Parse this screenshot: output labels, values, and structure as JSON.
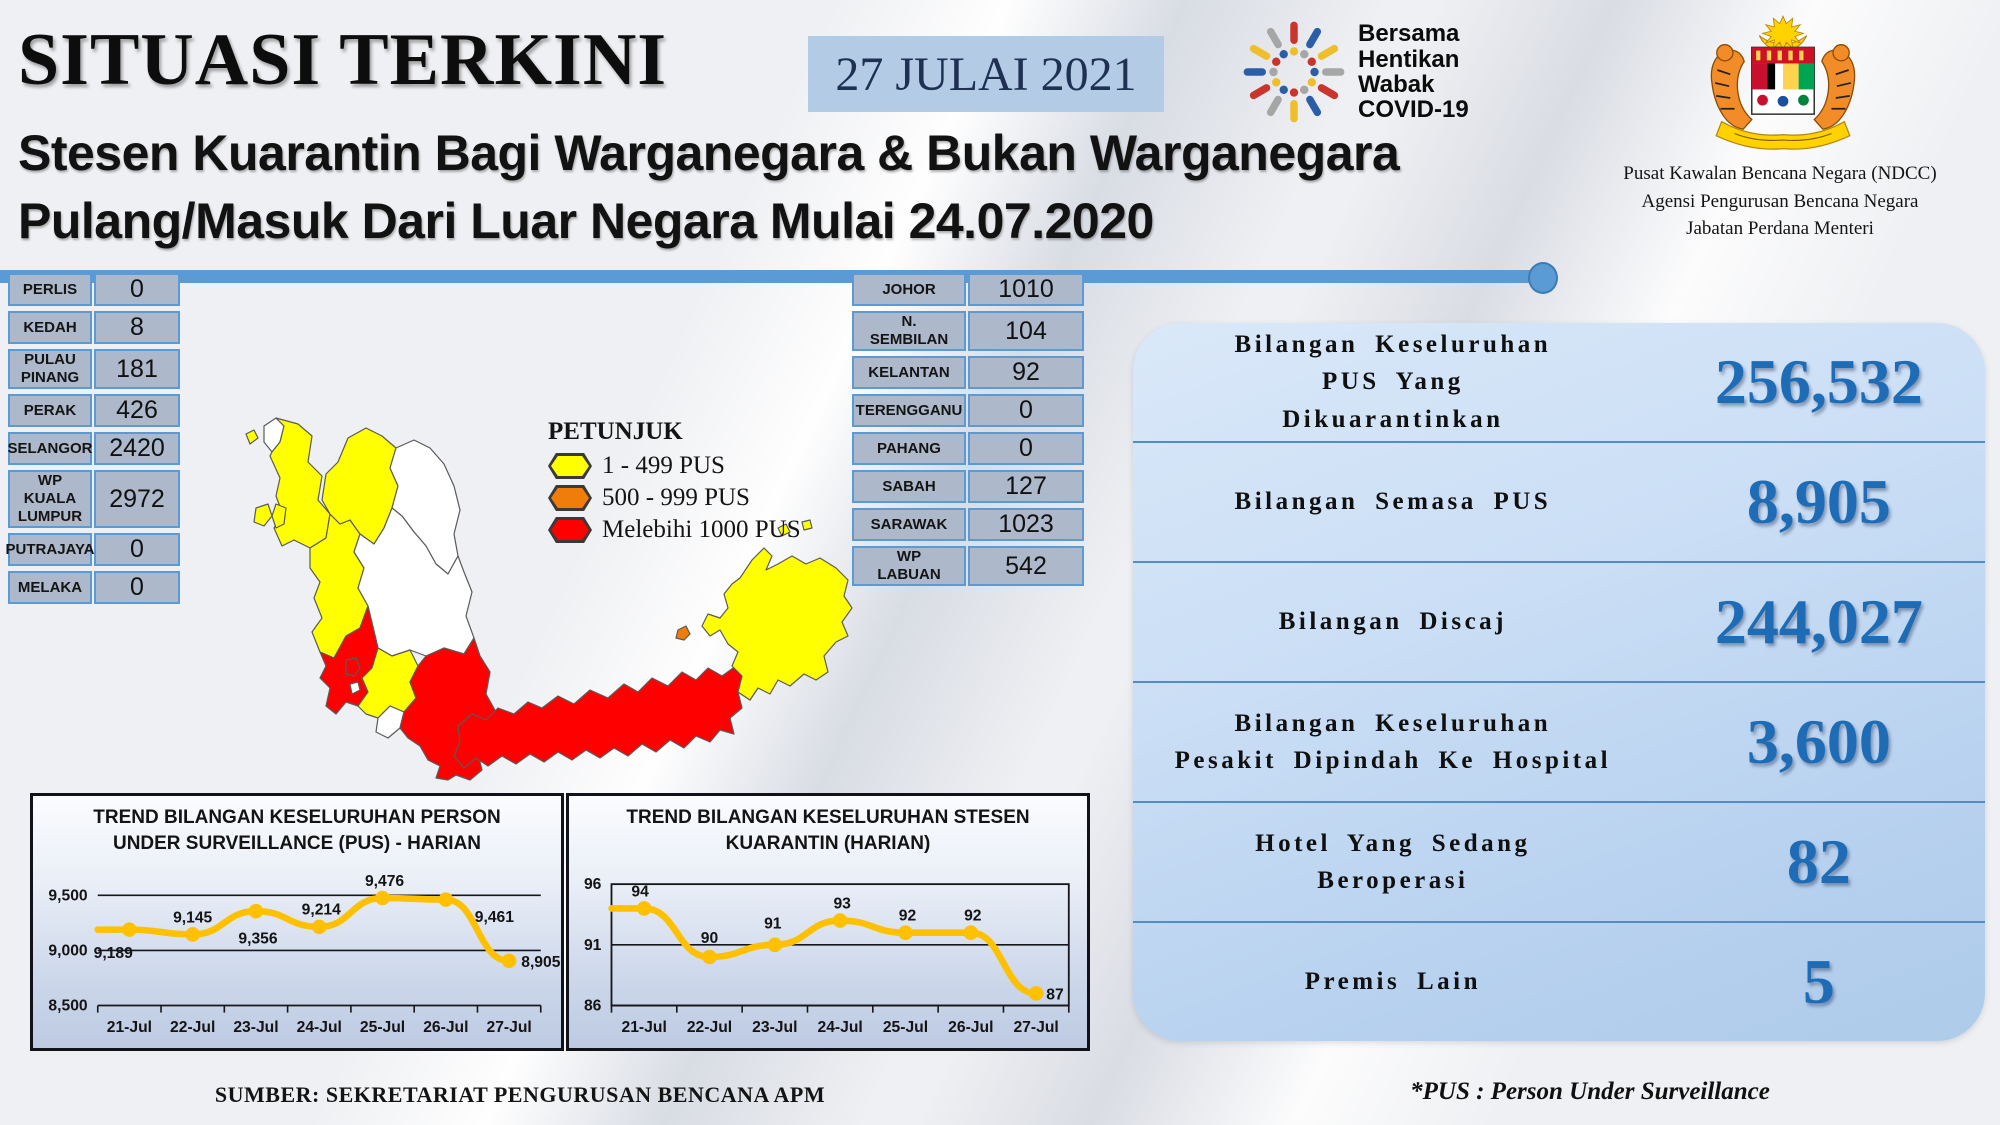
{
  "header": {
    "title": "SITUASI TERKINI",
    "date": "27 JULAI 2021",
    "subtitle_line1": "Stesen Kuarantin Bagi Warganegara & Bukan Warganegara",
    "subtitle_line2": "Pulang/Masuk Dari Luar Negara Mulai 24.07.2020",
    "campaign_logo_lines": [
      "Bersama",
      "Hentikan",
      "Wabak",
      "COVID-19"
    ],
    "agency_lines": [
      "Pusat Kawalan Bencana Negara (NDCC)",
      "Agensi Pengurusan Bencana Negara",
      "Jabatan Perdana Menteri"
    ]
  },
  "left_table": {
    "rows": [
      {
        "label": "PERLIS",
        "value": "0"
      },
      {
        "label": "KEDAH",
        "value": "8"
      },
      {
        "label": "PULAU\nPINANG",
        "value": "181"
      },
      {
        "label": "PERAK",
        "value": "426"
      },
      {
        "label": "SELANGOR",
        "value": "2420"
      },
      {
        "label": "WP KUALA\nLUMPUR",
        "value": "2972"
      },
      {
        "label": "PUTRAJAYA",
        "value": "0"
      },
      {
        "label": "MELAKA",
        "value": "0"
      }
    ]
  },
  "right_table": {
    "rows": [
      {
        "label": "JOHOR",
        "value": "1010"
      },
      {
        "label": "N.\nSEMBILAN",
        "value": "104"
      },
      {
        "label": "KELANTAN",
        "value": "92"
      },
      {
        "label": "TERENGGANU",
        "value": "0"
      },
      {
        "label": "PAHANG",
        "value": "0"
      },
      {
        "label": "SABAH",
        "value": "127"
      },
      {
        "label": "SARAWAK",
        "value": "1023"
      },
      {
        "label": "WP\nLABUAN",
        "value": "542"
      }
    ]
  },
  "legend": {
    "title": "PETUNJUK",
    "items": [
      {
        "label": "1 - 499 PUS",
        "color": "#FFFF00"
      },
      {
        "label": "500 - 999 PUS",
        "color": "#F07D09"
      },
      {
        "label": "Melebihi 1000 PUS",
        "color": "#FF0000"
      }
    ]
  },
  "map": {
    "state_colors": {
      "perlis": "#FFFFFF",
      "kedah": "#FFFF00",
      "langkawi": "#FFFF00",
      "pulau_pinang": "#FFFF00",
      "penang_mainland": "#FFFF00",
      "perak": "#FFFF00",
      "kelantan": "#FFFF00",
      "terengganu": "#FFFFFF",
      "pahang": "#FFFFFF",
      "selangor": "#FF0000",
      "kuala_lumpur": "#FF0000",
      "putrajaya": "#FFFFFF",
      "n_sembilan": "#FFFF00",
      "melaka": "#FFFFFF",
      "johor": "#FF0000",
      "sabah": "#FFFF00",
      "labuan": "#F07D09",
      "sarawak": "#FF0000"
    }
  },
  "stats": {
    "rows": [
      {
        "label": "Bilangan Keseluruhan\nPUS Yang\nDikuarantinkan",
        "value": "256,532"
      },
      {
        "label": "Bilangan Semasa PUS",
        "value": "8,905"
      },
      {
        "label": "Bilangan Discaj",
        "value": "244,027"
      },
      {
        "label": "Bilangan Keseluruhan\nPesakit Dipindah Ke Hospital",
        "value": "3,600"
      },
      {
        "label": "Hotel Yang Sedang\nBeroperasi",
        "value": "82"
      },
      {
        "label": "Premis Lain",
        "value": "5"
      }
    ]
  },
  "chart_data": [
    {
      "type": "line",
      "title": "TREND BILANGAN KESELURUHAN PERSON\nUNDER SURVEILLANCE (PUS) - HARIAN",
      "categories": [
        "21-Jul",
        "22-Jul",
        "23-Jul",
        "24-Jul",
        "25-Jul",
        "26-Jul",
        "27-Jul"
      ],
      "values": [
        9189,
        9145,
        9356,
        9214,
        9476,
        9461,
        8905
      ],
      "point_labels": [
        "9,189",
        "9,145",
        "9,356",
        "9,214",
        "9,476",
        "9,461",
        "8,905"
      ],
      "label_pos": [
        [
          -16,
          28,
          "middle"
        ],
        [
          0,
          -12,
          "middle"
        ],
        [
          2,
          32,
          "middle"
        ],
        [
          2,
          -12,
          "middle"
        ],
        [
          2,
          -12,
          "middle"
        ],
        [
          48,
          22,
          "middle"
        ],
        [
          12,
          6,
          "start"
        ]
      ],
      "y_ticks": [
        8500,
        9000,
        9500
      ],
      "y_tick_labels": [
        "8,500",
        "9,000",
        "9,500"
      ],
      "gridlines": [
        9000,
        9500
      ],
      "ylim": [
        8500,
        9620
      ],
      "frame": "open",
      "line_color": "#FFC000",
      "xlabel": "",
      "ylabel": ""
    },
    {
      "type": "line",
      "title": "TREND BILANGAN KESELURUHAN STESEN\nKUARANTIN (HARIAN)",
      "categories": [
        "21-Jul",
        "22-Jul",
        "23-Jul",
        "24-Jul",
        "25-Jul",
        "26-Jul",
        "27-Jul"
      ],
      "values": [
        94,
        90,
        91,
        93,
        92,
        92,
        87
      ],
      "point_labels": [
        "94",
        "90",
        "91",
        "93",
        "92",
        "92",
        "87"
      ],
      "label_pos": [
        [
          -4,
          -12,
          "middle"
        ],
        [
          0,
          -14,
          "middle"
        ],
        [
          -2,
          -16,
          "middle"
        ],
        [
          2,
          -12,
          "middle"
        ],
        [
          2,
          -12,
          "middle"
        ],
        [
          2,
          -12,
          "middle"
        ],
        [
          10,
          6,
          "start"
        ]
      ],
      "y_ticks": [
        86,
        91,
        96
      ],
      "y_tick_labels": [
        "86",
        "91",
        "96"
      ],
      "gridlines": [
        91
      ],
      "ylim": [
        86,
        96
      ],
      "frame": "box",
      "line_color": "#FFC000",
      "xlabel": "",
      "ylabel": ""
    }
  ],
  "footer": {
    "source": "SUMBER: SEKRETARIAT PENGURUSAN BENCANA APM",
    "pus_note": "*PUS : Person Under Surveillance"
  }
}
